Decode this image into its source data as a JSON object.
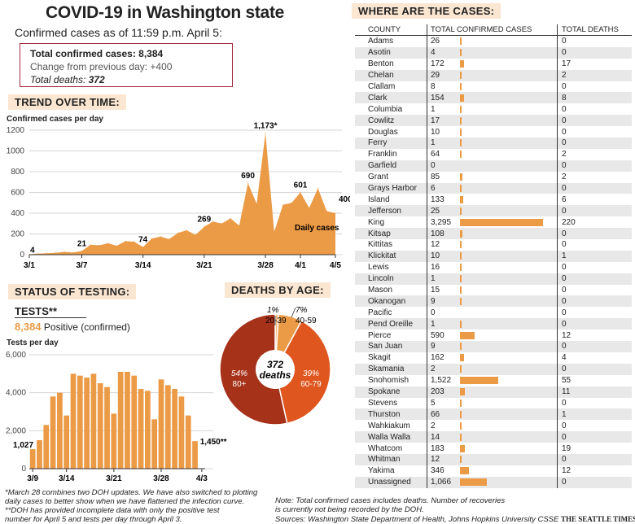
{
  "title": "COVID-19 in Washington state",
  "subtitle": "Confirmed cases as of 11:59 p.m. April 5:",
  "summary": {
    "total_label": "Total confirmed cases:",
    "total_value": "8,384",
    "change_text": "Change from previous day: +400",
    "deaths_label": "Total deaths:",
    "deaths_value": "372"
  },
  "trend": {
    "header": "TREND OVER TIME:",
    "ylabel": "Confirmed cases per day",
    "series_label": "Daily cases",
    "annotations": [
      "4",
      "21",
      "74",
      "269",
      "690",
      "1,173*",
      "601",
      "400"
    ]
  },
  "testing": {
    "header": "STATUS OF TESTING:",
    "tests_label": "TESTS**",
    "positive_number": "8,384",
    "positive_text": "Positive (confirmed)",
    "ylabel": "Tests per day",
    "start_label": "1,027",
    "end_label": "1,450**"
  },
  "deaths_by_age": {
    "header": "DEATHS BY AGE:",
    "center_number": "372",
    "center_text": "deaths"
  },
  "footnotes": {
    "left": [
      "*March 28 combines two DOH updates. We have also switched to plotting",
      "daily cases to better show when we have flattened the infection curve.",
      "**DOH has provided incomplete data with only the positive test",
      "number for April 5 and tests per day through April 3."
    ],
    "note": [
      "Note: Total confirmed cases includes deaths. Number of recoveries",
      "is currently not being recorded by the DOH."
    ],
    "sources": "Sources: Washington State Department of Health, Johns Hopkins University CSSE",
    "brand": "THE SEATTLE TIMES"
  },
  "cases_table": {
    "header": "WHERE ARE THE CASES:",
    "columns": [
      "COUNTY",
      "TOTAL CONFIRMED CASES",
      "TOTAL DEATHS"
    ]
  },
  "colors": {
    "accent": "#eb9a45",
    "dark_red": "#a6321a",
    "orange_red": "#e0561f",
    "box_border": "#a0293c"
  },
  "chart_data": [
    {
      "type": "area",
      "title": "TREND OVER TIME:",
      "ylabel": "Confirmed cases per day",
      "x_ticks": [
        "3/1",
        "3/7",
        "3/14",
        "3/21",
        "3/28",
        "4/1",
        "4/5"
      ],
      "y_ticks": [
        0,
        200,
        400,
        600,
        800,
        1000,
        1200
      ],
      "ylim": [
        0,
        1200
      ],
      "x": [
        "3/1",
        "3/2",
        "3/3",
        "3/4",
        "3/5",
        "3/6",
        "3/7",
        "3/8",
        "3/9",
        "3/10",
        "3/11",
        "3/12",
        "3/13",
        "3/14",
        "3/15",
        "3/16",
        "3/17",
        "3/18",
        "3/19",
        "3/20",
        "3/21",
        "3/22",
        "3/23",
        "3/24",
        "3/25",
        "3/26",
        "3/27",
        "3/28",
        "3/29",
        "3/30",
        "3/31",
        "4/1",
        "4/2",
        "4/3",
        "4/4",
        "4/5"
      ],
      "values": [
        4,
        10,
        14,
        18,
        27,
        21,
        35,
        95,
        90,
        110,
        85,
        130,
        125,
        74,
        155,
        175,
        150,
        210,
        235,
        190,
        269,
        320,
        300,
        350,
        280,
        690,
        490,
        1173,
        220,
        480,
        500,
        601,
        450,
        640,
        420,
        400
      ]
    },
    {
      "type": "bar",
      "title": "STATUS OF TESTING:",
      "ylabel": "Tests per day",
      "x_ticks": [
        "3/9",
        "3/14",
        "3/21",
        "3/28",
        "4/3"
      ],
      "y_ticks": [
        0,
        2000,
        4000,
        6000
      ],
      "ylim": [
        0,
        6000
      ],
      "x": [
        "3/9",
        "3/10",
        "3/11",
        "3/12",
        "3/13",
        "3/14",
        "3/15",
        "3/16",
        "3/17",
        "3/18",
        "3/19",
        "3/20",
        "3/21",
        "3/22",
        "3/23",
        "3/24",
        "3/25",
        "3/26",
        "3/27",
        "3/28",
        "3/29",
        "3/30",
        "3/31",
        "4/1",
        "4/2",
        "4/3"
      ],
      "values": [
        1027,
        1500,
        2300,
        3800,
        4000,
        2800,
        5000,
        4900,
        4800,
        5000,
        4500,
        4300,
        2900,
        5100,
        5100,
        4900,
        4200,
        4100,
        2600,
        4700,
        4400,
        4200,
        3800,
        2800,
        1450,
        0
      ]
    },
    {
      "type": "pie",
      "title": "DEATHS BY AGE:",
      "slices": [
        {
          "pct_label": "1%",
          "age": "20-39",
          "value": 1
        },
        {
          "pct_label": "7%",
          "age": "40-59",
          "value": 7
        },
        {
          "pct_label": "39%",
          "age": "60-79",
          "value": 39
        },
        {
          "pct_label": "54%",
          "age": "80+",
          "value": 54
        }
      ]
    },
    {
      "type": "table",
      "title": "WHERE ARE THE CASES:",
      "columns": [
        "COUNTY",
        "TOTAL CONFIRMED CASES",
        "TOTAL DEATHS"
      ],
      "rows": [
        {
          "county": "Adams",
          "cases": 26,
          "cases_label": "26",
          "deaths": "0"
        },
        {
          "county": "Asotin",
          "cases": 4,
          "cases_label": "4",
          "deaths": "0"
        },
        {
          "county": "Benton",
          "cases": 172,
          "cases_label": "172",
          "deaths": "17"
        },
        {
          "county": "Chelan",
          "cases": 29,
          "cases_label": "29",
          "deaths": "2"
        },
        {
          "county": "Clallam",
          "cases": 8,
          "cases_label": "8",
          "deaths": "0"
        },
        {
          "county": "Clark",
          "cases": 154,
          "cases_label": "154",
          "deaths": "8"
        },
        {
          "county": "Columbia",
          "cases": 1,
          "cases_label": "1",
          "deaths": "0"
        },
        {
          "county": "Cowlitz",
          "cases": 17,
          "cases_label": "17",
          "deaths": "0"
        },
        {
          "county": "Douglas",
          "cases": 10,
          "cases_label": "10",
          "deaths": "0"
        },
        {
          "county": "Ferry",
          "cases": 1,
          "cases_label": "1",
          "deaths": "0"
        },
        {
          "county": "Franklin",
          "cases": 64,
          "cases_label": "64",
          "deaths": "2"
        },
        {
          "county": "Garfield",
          "cases": 0,
          "cases_label": "0",
          "deaths": "0"
        },
        {
          "county": "Grant",
          "cases": 85,
          "cases_label": "85",
          "deaths": "2"
        },
        {
          "county": "Grays Harbor",
          "cases": 6,
          "cases_label": "6",
          "deaths": "0"
        },
        {
          "county": "Island",
          "cases": 133,
          "cases_label": "133",
          "deaths": "6"
        },
        {
          "county": "Jefferson",
          "cases": 25,
          "cases_label": "25",
          "deaths": "0"
        },
        {
          "county": "King",
          "cases": 3295,
          "cases_label": "3,295",
          "deaths": "220"
        },
        {
          "county": "Kitsap",
          "cases": 108,
          "cases_label": "108",
          "deaths": "0"
        },
        {
          "county": "Kittitas",
          "cases": 12,
          "cases_label": "12",
          "deaths": "0"
        },
        {
          "county": "Klickitat",
          "cases": 10,
          "cases_label": "10",
          "deaths": "1"
        },
        {
          "county": "Lewis",
          "cases": 16,
          "cases_label": "16",
          "deaths": "0"
        },
        {
          "county": "Lincoln",
          "cases": 1,
          "cases_label": "1",
          "deaths": "0"
        },
        {
          "county": "Mason",
          "cases": 15,
          "cases_label": "15",
          "deaths": "0"
        },
        {
          "county": "Okanogan",
          "cases": 9,
          "cases_label": "9",
          "deaths": "0"
        },
        {
          "county": "Pacific",
          "cases": 0,
          "cases_label": "0",
          "deaths": "0"
        },
        {
          "county": "Pend Oreille",
          "cases": 1,
          "cases_label": "1",
          "deaths": "0"
        },
        {
          "county": "Pierce",
          "cases": 590,
          "cases_label": "590",
          "deaths": "12"
        },
        {
          "county": "San Juan",
          "cases": 9,
          "cases_label": "9",
          "deaths": "0"
        },
        {
          "county": "Skagit",
          "cases": 162,
          "cases_label": "162",
          "deaths": "4"
        },
        {
          "county": "Skamania",
          "cases": 2,
          "cases_label": "2",
          "deaths": "0"
        },
        {
          "county": "Snohomish",
          "cases": 1522,
          "cases_label": "1,522",
          "deaths": "55"
        },
        {
          "county": "Spokane",
          "cases": 203,
          "cases_label": "203",
          "deaths": "11"
        },
        {
          "county": "Stevens",
          "cases": 5,
          "cases_label": "5",
          "deaths": "0"
        },
        {
          "county": "Thurston",
          "cases": 66,
          "cases_label": "66",
          "deaths": "1"
        },
        {
          "county": "Wahkiakum",
          "cases": 2,
          "cases_label": "2",
          "deaths": "0"
        },
        {
          "county": "Walla Walla",
          "cases": 14,
          "cases_label": "14",
          "deaths": "0"
        },
        {
          "county": "Whatcom",
          "cases": 183,
          "cases_label": "183",
          "deaths": "19"
        },
        {
          "county": "Whitman",
          "cases": 12,
          "cases_label": "12",
          "deaths": "0"
        },
        {
          "county": "Yakima",
          "cases": 346,
          "cases_label": "346",
          "deaths": "12"
        },
        {
          "county": "Unassigned",
          "cases": 1066,
          "cases_label": "1,066",
          "deaths": "0"
        }
      ]
    }
  ]
}
